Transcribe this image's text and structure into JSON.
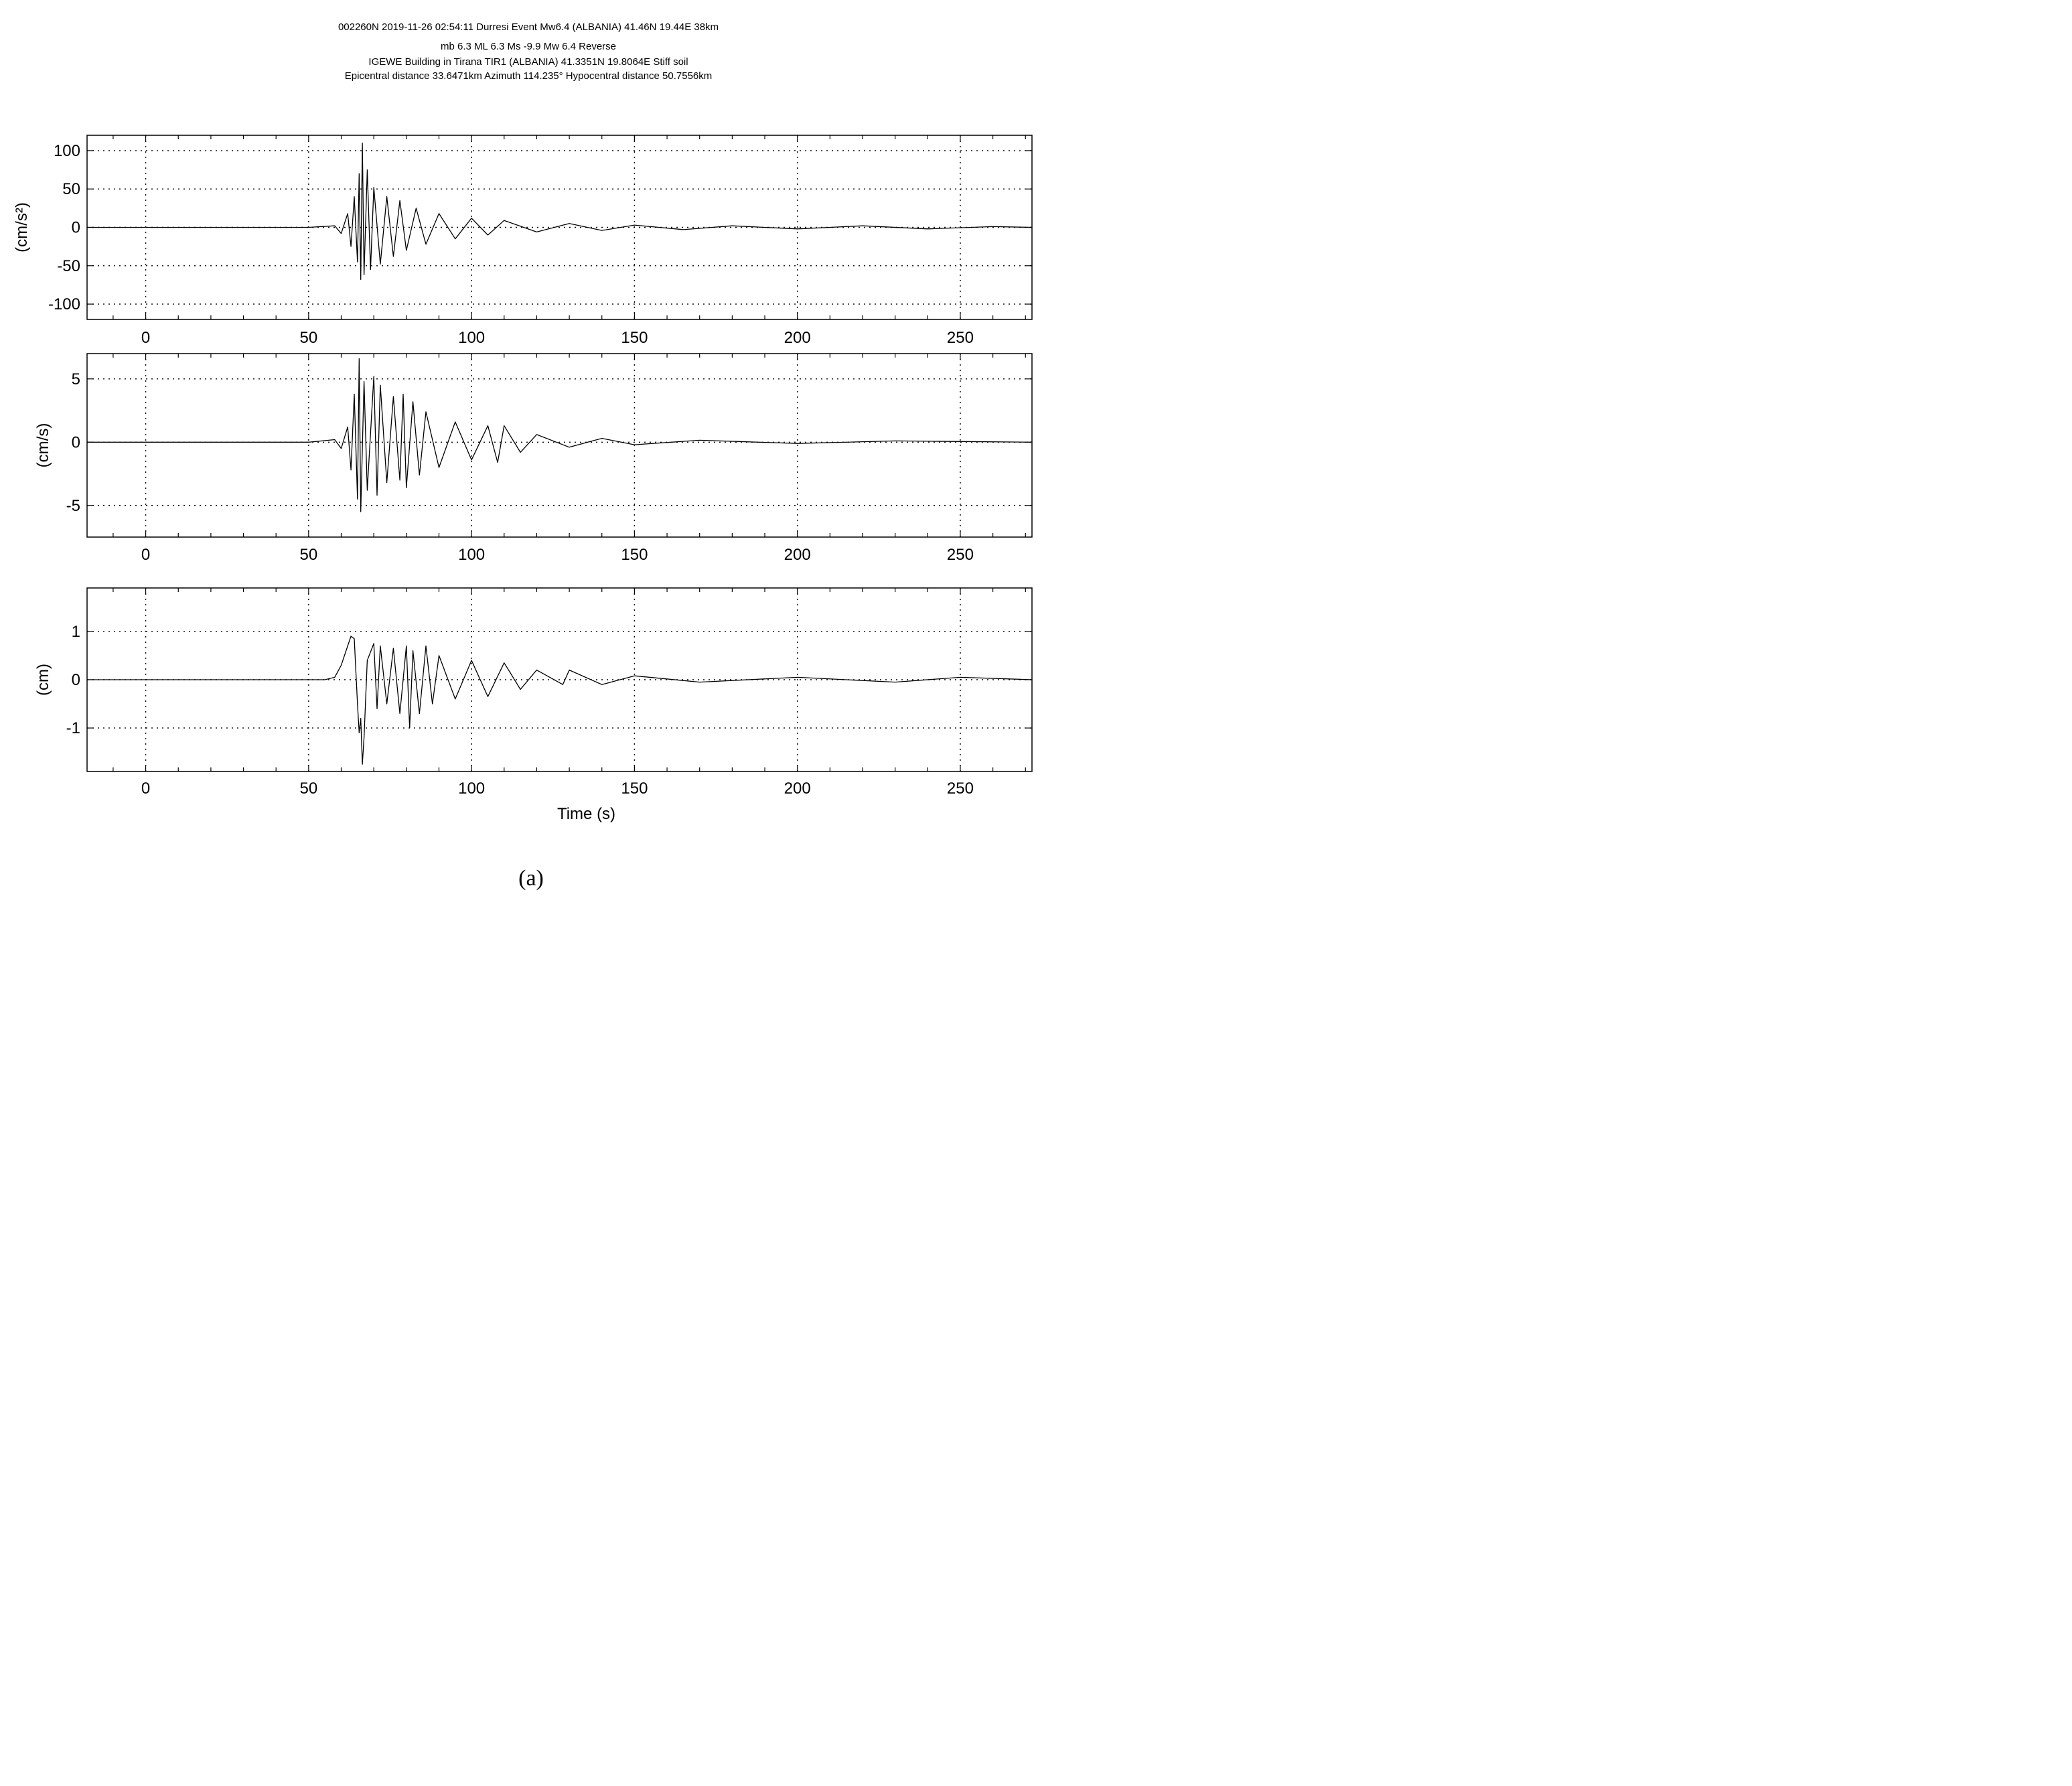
{
  "header": {
    "line1": "002260N 2019-11-26 02:54:11 Durresi Event Mw6.4 (ALBANIA) 41.46N 19.44E 38km",
    "line2": "mb 6.3 ML 6.3 Ms -9.9 Mw 6.4 Reverse",
    "line3": "IGEWE Building in Tirana TIR1 (ALBANIA) 41.3351N 19.8064E Stiff soil",
    "line4": "Epicentral distance 33.6471km Azimuth 114.235° Hypocentral distance 50.7556km"
  },
  "caption": "(a)",
  "chart_data": [
    {
      "type": "line",
      "title": "",
      "xlabel": "",
      "ylabel": "(cm/s²)",
      "xlim": [
        -18,
        272
      ],
      "ylim": [
        -120,
        120
      ],
      "xticks": [
        0,
        50,
        100,
        150,
        200,
        250
      ],
      "yticks": [
        100,
        50,
        0,
        -50,
        -100
      ],
      "grid": true,
      "line_color": "#000000",
      "series": [
        {
          "x": [
            -18,
            0,
            50,
            58,
            60,
            62,
            63,
            64,
            65,
            65.5,
            66,
            66.5,
            67,
            68,
            69,
            70,
            72,
            74,
            76,
            78,
            80,
            83,
            86,
            90,
            95,
            100,
            105,
            110,
            120,
            130,
            140,
            150,
            165,
            180,
            200,
            220,
            240,
            260,
            272
          ],
          "y": [
            0,
            0,
            0,
            2,
            -8,
            18,
            -25,
            40,
            -45,
            70,
            -68,
            110,
            -62,
            75,
            -55,
            52,
            -48,
            40,
            -38,
            35,
            -30,
            25,
            -22,
            18,
            -15,
            12,
            -10,
            9,
            -6,
            5,
            -4,
            3,
            -3,
            2,
            -2,
            2,
            -2,
            1,
            0
          ]
        }
      ]
    },
    {
      "type": "line",
      "title": "",
      "xlabel": "",
      "ylabel": "(cm/s)",
      "xlim": [
        -18,
        272
      ],
      "ylim": [
        -7.5,
        7
      ],
      "xticks": [
        0,
        50,
        100,
        150,
        200,
        250
      ],
      "yticks": [
        5,
        0,
        -5
      ],
      "grid": true,
      "line_color": "#000000",
      "series": [
        {
          "x": [
            -18,
            0,
            50,
            58,
            60,
            62,
            63,
            64,
            65,
            65.5,
            66,
            67,
            68,
            70,
            71,
            72,
            74,
            76,
            78,
            79,
            80,
            82,
            84,
            86,
            90,
            95,
            100,
            105,
            108,
            110,
            115,
            120,
            130,
            140,
            150,
            170,
            200,
            230,
            250,
            272
          ],
          "y": [
            0,
            0,
            0,
            0.2,
            -0.5,
            1.2,
            -2.2,
            3.8,
            -4.5,
            6.6,
            -5.5,
            4.8,
            -3.8,
            5.2,
            -4.2,
            4.5,
            -3.2,
            3.6,
            -3.0,
            3.8,
            -3.6,
            3.2,
            -2.6,
            2.4,
            -2.0,
            1.6,
            -1.4,
            1.3,
            -1.6,
            1.3,
            -0.8,
            0.6,
            -0.4,
            0.3,
            -0.2,
            0.15,
            -0.1,
            0.1,
            0.05,
            0
          ]
        }
      ]
    },
    {
      "type": "line",
      "title": "",
      "xlabel": "Time (s)",
      "ylabel": "(cm)",
      "xlim": [
        -18,
        272
      ],
      "ylim": [
        -1.9,
        1.9
      ],
      "xticks": [
        0,
        50,
        100,
        150,
        200,
        250
      ],
      "yticks": [
        1,
        0,
        -1
      ],
      "grid": true,
      "line_color": "#000000",
      "series": [
        {
          "x": [
            -18,
            0,
            48,
            55,
            58,
            60,
            62,
            63,
            64,
            65,
            65.5,
            66,
            66.5,
            67,
            68,
            70,
            71,
            72,
            74,
            76,
            78,
            80,
            81,
            82,
            84,
            86,
            88,
            90,
            95,
            100,
            105,
            110,
            115,
            120,
            128,
            130,
            140,
            150,
            170,
            200,
            230,
            250,
            272
          ],
          "y": [
            0,
            0,
            0,
            0,
            0.05,
            0.3,
            0.7,
            0.9,
            0.85,
            -0.5,
            -1.1,
            -0.8,
            -1.75,
            -1.2,
            0.4,
            0.75,
            -0.6,
            0.7,
            -0.5,
            0.65,
            -0.7,
            0.7,
            -1.0,
            0.6,
            -0.7,
            0.7,
            -0.5,
            0.5,
            -0.4,
            0.4,
            -0.35,
            0.35,
            -0.2,
            0.2,
            -0.1,
            0.2,
            -0.1,
            0.08,
            -0.05,
            0.05,
            -0.05,
            0.05,
            0
          ]
        }
      ]
    }
  ]
}
